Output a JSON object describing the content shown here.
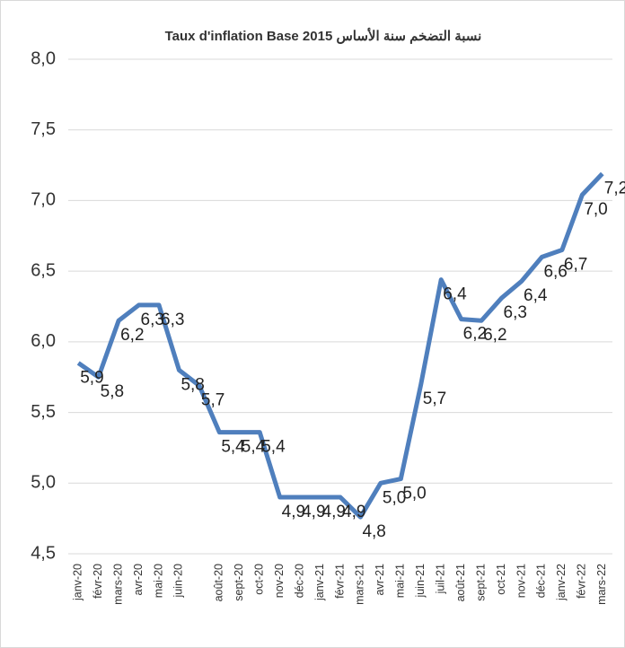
{
  "chart_data": {
    "type": "line",
    "title": "Taux d'inflation Base 2015 نسبة التضخم سنة الأساس",
    "categories": [
      "janv-20",
      "févr-20",
      "mars-20",
      "avr-20",
      "mai-20",
      "juin-20",
      null,
      "août-20",
      "sept-20",
      "oct-20",
      "nov-20",
      "déc-20",
      "janv-21",
      "févr-21",
      "mars-21",
      "avr-21",
      "mai-21",
      "juin-21",
      "juil-21",
      "août-21",
      "sept-21",
      "oct-21",
      "nov-21",
      "déc-21",
      "janv-22",
      "févr-22",
      "mars-22"
    ],
    "values": [
      5.85,
      5.75,
      6.15,
      6.26,
      6.26,
      5.8,
      5.69,
      5.36,
      5.36,
      5.36,
      4.9,
      4.9,
      4.9,
      4.9,
      4.76,
      5.0,
      5.03,
      5.7,
      6.44,
      6.16,
      6.15,
      6.31,
      6.43,
      6.6,
      6.65,
      7.04,
      7.19
    ],
    "value_labels": [
      "5,9",
      "5,8",
      "6,2",
      "6,3",
      "6,3",
      "5,8",
      "5,7",
      "5,4",
      "5,4",
      "5,4",
      "4,9",
      "4,9",
      "4,9",
      "4,9",
      "4,8",
      "5,0",
      "5,0",
      "5,7",
      "6,4",
      "6,2",
      "6,2",
      "6,3",
      "6,4",
      "6,6",
      "6,7",
      "7,0",
      "7,2"
    ],
    "color": "#4f7fbd",
    "ylim": [
      4.5,
      8.0
    ],
    "yticks": [
      {
        "value": 4.5,
        "label": "4,5"
      },
      {
        "value": 5.0,
        "label": "5,0"
      },
      {
        "value": 5.5,
        "label": "5,5"
      },
      {
        "value": 6.0,
        "label": "6,0"
      },
      {
        "value": 6.5,
        "label": "6,5"
      },
      {
        "value": 7.0,
        "label": "7,0"
      },
      {
        "value": 7.5,
        "label": "7,5"
      },
      {
        "value": 8.0,
        "label": "8,0"
      }
    ],
    "grid": true
  }
}
